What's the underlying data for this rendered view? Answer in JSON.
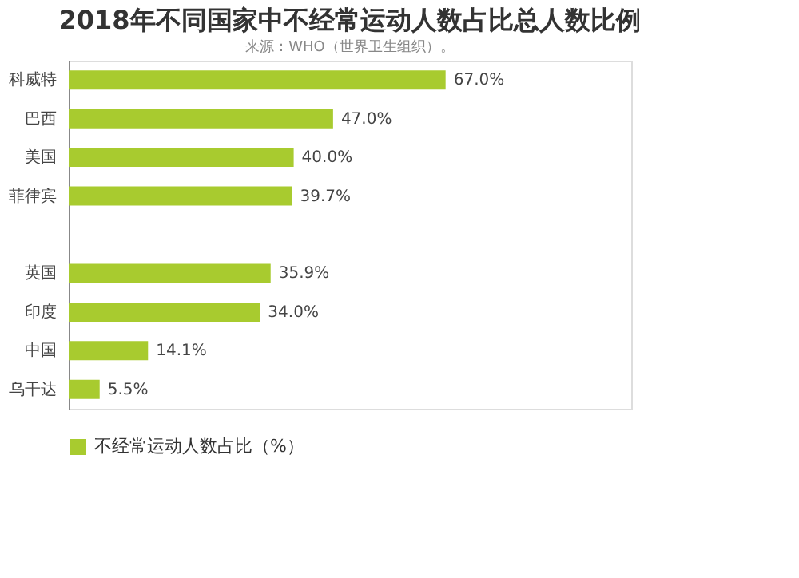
{
  "chart_data": {
    "type": "bar",
    "orientation": "horizontal",
    "title": "2018年不同国家中不经常运动人数占比总人数比例",
    "categories": [
      "科威特",
      "巴西",
      "美国",
      "菲律宾",
      null,
      "英国",
      "印度",
      "中国",
      "乌干达"
    ],
    "series": [
      {
        "name": "不经常运动人数占比（%）",
        "color": "#a8cb2f",
        "values": [
          67.0,
          47.0,
          40.0,
          39.7,
          null,
          35.9,
          34.0,
          14.1,
          5.5
        ],
        "value_labels": [
          "67.0%",
          "47.0%",
          "40.0%",
          "39.7%",
          null,
          "35.9%",
          "34.0%",
          "14.1%",
          "5.5%"
        ]
      }
    ],
    "xlim": [
      0,
      100
    ],
    "tick_labels": "y",
    "grid": false,
    "legend": "bottom",
    "annotations": [
      "来源：WHO（世界卫生组织）。"
    ]
  }
}
